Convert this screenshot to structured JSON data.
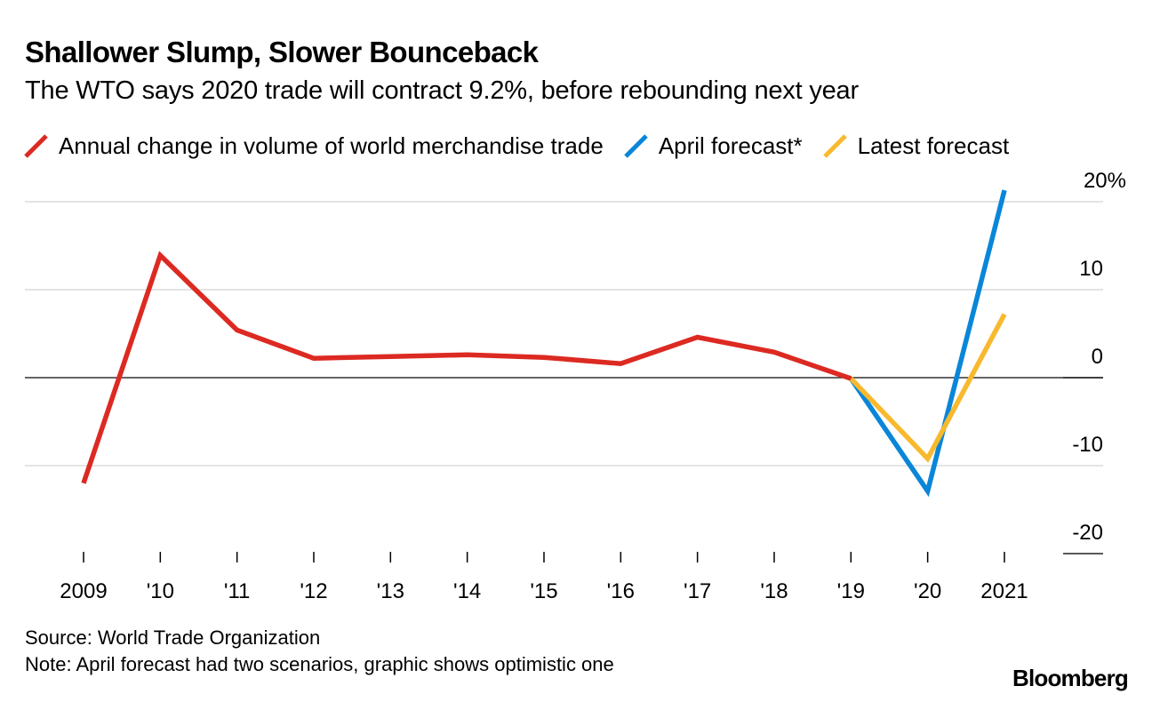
{
  "header": {
    "title": "Shallower Slump, Slower Bounceback",
    "subtitle": "The WTO says 2020 trade will contract 9.2%, before rebounding next year"
  },
  "legend": [
    {
      "label": "Annual change in volume of world merchandise trade",
      "color": "#DC2A22",
      "icon": "diagonal-line-icon"
    },
    {
      "label": "April forecast*",
      "color": "#0A86D8",
      "icon": "diagonal-line-icon"
    },
    {
      "label": "Latest forecast",
      "color": "#F8B92E",
      "icon": "diagonal-line-icon"
    }
  ],
  "footer": {
    "source": "Source: World Trade Organization",
    "note": "Note: April forecast had two scenarios, graphic shows optimistic one",
    "brand": "Bloomberg"
  },
  "chart_data": {
    "type": "line",
    "title": "Shallower Slump, Slower Bounceback",
    "subtitle": "The WTO says 2020 trade will contract 9.2%, before rebounding next year",
    "xlabel": "",
    "ylabel": "",
    "x": [
      2009,
      2010,
      2011,
      2012,
      2013,
      2014,
      2015,
      2016,
      2017,
      2018,
      2019,
      2020,
      2021
    ],
    "x_tick_labels": [
      "2009",
      "'10",
      "'11",
      "'12",
      "'13",
      "'14",
      "'15",
      "'16",
      "'17",
      "'18",
      "'19",
      "'20",
      "2021"
    ],
    "y_ticks": [
      20,
      10,
      0,
      -10,
      -20
    ],
    "y_tick_labels": [
      "20%",
      "10",
      "0",
      "-10",
      "-20"
    ],
    "ylim": [
      -20,
      20
    ],
    "y_axis_side": "right",
    "grid": true,
    "legend_position": "top",
    "series": [
      {
        "name": "Annual change in volume of world merchandise trade",
        "color": "#DC2A22",
        "x": [
          2009,
          2010,
          2011,
          2012,
          2013,
          2014,
          2015,
          2016,
          2017,
          2018,
          2019
        ],
        "values": [
          -12.0,
          13.9,
          5.4,
          2.2,
          2.4,
          2.6,
          2.3,
          1.6,
          4.6,
          2.9,
          -0.1
        ]
      },
      {
        "name": "April forecast*",
        "color": "#0A86D8",
        "x": [
          2019,
          2020,
          2021
        ],
        "values": [
          -0.1,
          -12.9,
          21.3
        ]
      },
      {
        "name": "Latest forecast",
        "color": "#F8B92E",
        "x": [
          2019,
          2020,
          2021
        ],
        "values": [
          -0.1,
          -9.2,
          7.2
        ]
      }
    ]
  }
}
